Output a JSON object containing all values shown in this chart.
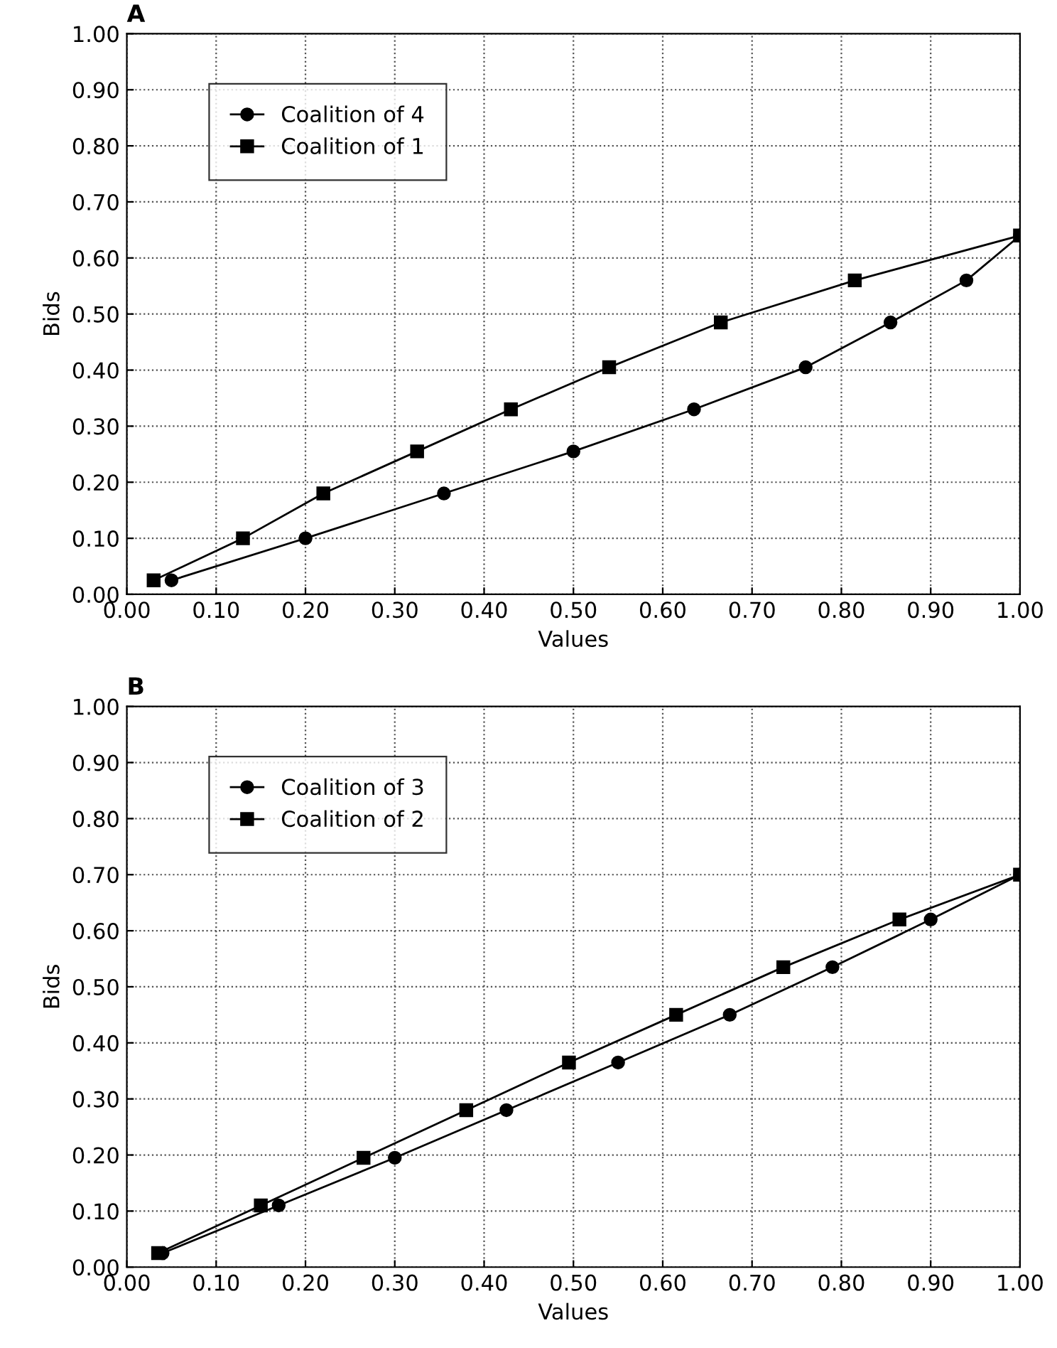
{
  "chart_data": [
    {
      "type": "line",
      "title": "A",
      "xlabel": "Values",
      "ylabel": "Bids",
      "xlim": [
        0,
        1
      ],
      "ylim": [
        0,
        1
      ],
      "xticks": [
        {
          "value": 0,
          "label": "0.00"
        },
        {
          "value": 0.1,
          "label": "0.10"
        },
        {
          "value": 0.2,
          "label": "0.20"
        },
        {
          "value": 0.3,
          "label": "0.30"
        },
        {
          "value": 0.4,
          "label": "0.40"
        },
        {
          "value": 0.5,
          "label": "0.50"
        },
        {
          "value": 0.6,
          "label": "0.60"
        },
        {
          "value": 0.7,
          "label": "0.70"
        },
        {
          "value": 0.8,
          "label": "0.80"
        },
        {
          "value": 0.9,
          "label": "0.90"
        },
        {
          "value": 1,
          "label": "1.00"
        }
      ],
      "yticks": [
        {
          "value": 0,
          "label": "0.00"
        },
        {
          "value": 0.1,
          "label": "0.10"
        },
        {
          "value": 0.2,
          "label": "0.20"
        },
        {
          "value": 0.3,
          "label": "0.30"
        },
        {
          "value": 0.4,
          "label": "0.40"
        },
        {
          "value": 0.5,
          "label": "0.50"
        },
        {
          "value": 0.6,
          "label": "0.60"
        },
        {
          "value": 0.7,
          "label": "0.70"
        },
        {
          "value": 0.8,
          "label": "0.80"
        },
        {
          "value": 0.9,
          "label": "0.90"
        },
        {
          "value": 1,
          "label": "1.00"
        }
      ],
      "grid": true,
      "legend": "top left",
      "line_style": "solid",
      "series": [
        {
          "name": "Coalition of 4",
          "color": "#000000",
          "marker": "circle",
          "x": [
            0.05,
            0.2,
            0.355,
            0.5,
            0.635,
            0.76,
            0.855,
            0.94,
            1.0
          ],
          "values": [
            0.025,
            0.1,
            0.18,
            0.255,
            0.33,
            0.405,
            0.485,
            0.56,
            0.64
          ]
        },
        {
          "name": "Coalition of 1",
          "color": "#000000",
          "marker": "square",
          "x": [
            0.03,
            0.13,
            0.22,
            0.325,
            0.43,
            0.54,
            0.665,
            0.815,
            1.0
          ],
          "values": [
            0.025,
            0.1,
            0.18,
            0.255,
            0.33,
            0.405,
            0.485,
            0.56,
            0.64
          ]
        }
      ]
    },
    {
      "type": "line",
      "title": "B",
      "xlabel": "Values",
      "ylabel": "Bids",
      "xlim": [
        0,
        1
      ],
      "ylim": [
        0,
        1
      ],
      "xticks": [
        {
          "value": 0,
          "label": "0.00"
        },
        {
          "value": 0.1,
          "label": "0.10"
        },
        {
          "value": 0.2,
          "label": "0.20"
        },
        {
          "value": 0.3,
          "label": "0.30"
        },
        {
          "value": 0.4,
          "label": "0.40"
        },
        {
          "value": 0.5,
          "label": "0.50"
        },
        {
          "value": 0.6,
          "label": "0.60"
        },
        {
          "value": 0.7,
          "label": "0.70"
        },
        {
          "value": 0.8,
          "label": "0.80"
        },
        {
          "value": 0.9,
          "label": "0.90"
        },
        {
          "value": 1,
          "label": "1.00"
        }
      ],
      "yticks": [
        {
          "value": 0,
          "label": "0.00"
        },
        {
          "value": 0.1,
          "label": "0.10"
        },
        {
          "value": 0.2,
          "label": "0.20"
        },
        {
          "value": 0.3,
          "label": "0.30"
        },
        {
          "value": 0.4,
          "label": "0.40"
        },
        {
          "value": 0.5,
          "label": "0.50"
        },
        {
          "value": 0.6,
          "label": "0.60"
        },
        {
          "value": 0.7,
          "label": "0.70"
        },
        {
          "value": 0.8,
          "label": "0.80"
        },
        {
          "value": 0.9,
          "label": "0.90"
        },
        {
          "value": 1,
          "label": "1.00"
        }
      ],
      "grid": true,
      "legend": "top left",
      "line_style": "solid",
      "series": [
        {
          "name": "Coalition of 3",
          "color": "#000000",
          "marker": "circle",
          "x": [
            0.04,
            0.17,
            0.3,
            0.425,
            0.55,
            0.675,
            0.79,
            0.9,
            1.0
          ],
          "values": [
            0.025,
            0.11,
            0.195,
            0.28,
            0.365,
            0.45,
            0.535,
            0.62,
            0.7
          ]
        },
        {
          "name": "Coalition of 2",
          "color": "#000000",
          "marker": "square",
          "x": [
            0.035,
            0.15,
            0.265,
            0.38,
            0.495,
            0.615,
            0.735,
            0.865,
            1.0
          ],
          "values": [
            0.025,
            0.11,
            0.195,
            0.28,
            0.365,
            0.45,
            0.535,
            0.62,
            0.7
          ]
        }
      ]
    }
  ]
}
